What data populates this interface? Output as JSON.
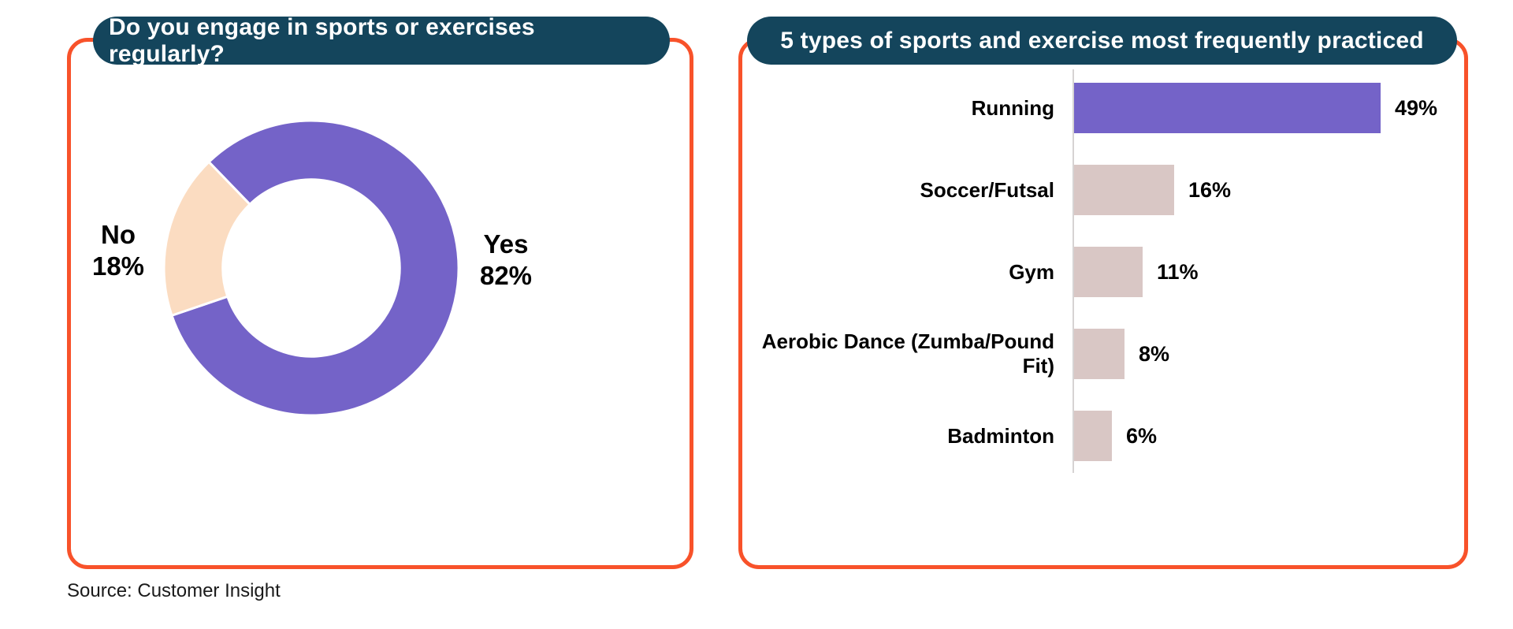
{
  "page": {
    "source_note": "Source: Customer Insight"
  },
  "colors": {
    "accent_orange": "#F8522A",
    "pill_navy": "#14455C",
    "purple": "#7463C8",
    "peach": "#FBDCC1",
    "bar_pink": "#D9C7C5",
    "axis_gray": "#D6D3D3",
    "label_black": "#000000",
    "title_text": "#FFFFFF"
  },
  "left_panel": {
    "title": "Do you engage in sports or exercises regularly?"
  },
  "right_panel": {
    "title": "5 types of sports and exercise most frequently practiced"
  },
  "chart_data": [
    {
      "type": "pie",
      "subtype": "donut",
      "panel": "left",
      "title": "Do you engage in sports or exercises regularly?",
      "labels": [
        "Yes",
        "No"
      ],
      "values": [
        82,
        18
      ],
      "unit": "%",
      "slice_colors": [
        "#7463C8",
        "#FBDCC1"
      ],
      "rotation_deg": -44,
      "inner_radius_ratio": 0.6,
      "legend_position": "none",
      "data_labels": "outside"
    },
    {
      "type": "bar",
      "subtype": "horizontal",
      "panel": "right",
      "title": "5 types of sports and exercise most frequently practiced",
      "categories": [
        "Running",
        "Soccer/Futsal",
        "Gym",
        "Aerobic Dance (Zumba/Pound Fit)",
        "Badminton"
      ],
      "values": [
        49,
        16,
        11,
        8,
        6
      ],
      "unit": "%",
      "bar_colors": [
        "#7463C8",
        "#D9C7C5",
        "#D9C7C5",
        "#D9C7C5",
        "#D9C7C5"
      ],
      "xlim": [
        0,
        52
      ],
      "grid": false,
      "value_labels": "end",
      "axis_visible": true
    }
  ]
}
